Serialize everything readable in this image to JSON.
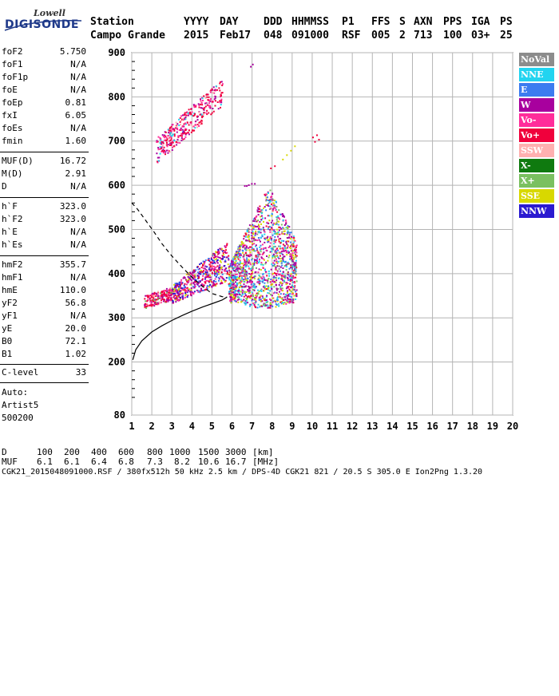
{
  "logo": {
    "line1": "Lowell",
    "line2": "DIGISONDE"
  },
  "header": {
    "labels": [
      "Station",
      "YYYY",
      "DAY",
      "DDD",
      "HHMMSS",
      "P1",
      "FFS",
      "S",
      "AXN",
      "PPS",
      "IGA",
      "PS"
    ],
    "values": [
      "Campo Grande",
      "2015",
      "Feb17",
      "048",
      "091000",
      "RSF",
      "005",
      "2",
      "713",
      "100",
      "03+",
      "25"
    ]
  },
  "params_group1": [
    {
      "name": "foF2",
      "value": "5.750"
    },
    {
      "name": "foF1",
      "value": "N/A"
    },
    {
      "name": "foF1p",
      "value": "N/A"
    },
    {
      "name": "foE",
      "value": "N/A"
    },
    {
      "name": "foEp",
      "value": "0.81"
    },
    {
      "name": "fxI",
      "value": "6.05"
    },
    {
      "name": "foEs",
      "value": "N/A"
    },
    {
      "name": "fmin",
      "value": "1.60"
    }
  ],
  "params_group2": [
    {
      "name": "MUF(D)",
      "value": "16.72"
    },
    {
      "name": "M(D)",
      "value": "2.91"
    },
    {
      "name": "D",
      "value": "N/A"
    }
  ],
  "params_group3": [
    {
      "name": "h`F",
      "value": "323.0"
    },
    {
      "name": "h`F2",
      "value": "323.0"
    },
    {
      "name": "h`E",
      "value": "N/A"
    },
    {
      "name": "h`Es",
      "value": "N/A"
    }
  ],
  "params_group4": [
    {
      "name": "hmF2",
      "value": "355.7"
    },
    {
      "name": "hmF1",
      "value": "N/A"
    },
    {
      "name": "hmE",
      "value": "110.0"
    },
    {
      "name": "yF2",
      "value": "56.8"
    },
    {
      "name": "yF1",
      "value": "N/A"
    },
    {
      "name": "yE",
      "value": "20.0"
    },
    {
      "name": "B0",
      "value": "72.1"
    },
    {
      "name": "B1",
      "value": "1.02"
    }
  ],
  "params_group5": [
    {
      "name": "C-level",
      "value": "33"
    }
  ],
  "autoscaling": {
    "line1": "Auto:",
    "line2": "Artist5",
    "line3": "500200"
  },
  "legend": [
    {
      "label": "NoVal",
      "color": "#8c8c8c"
    },
    {
      "label": "NNE",
      "color": "#22d4f0"
    },
    {
      "label": "E",
      "color": "#3b7cf0"
    },
    {
      "label": "W",
      "color": "#a8009e"
    },
    {
      "label": "Vo-",
      "color": "#ff2d9a"
    },
    {
      "label": "Vo+",
      "color": "#f0003c"
    },
    {
      "label": "SSW",
      "color": "#ffb0b0"
    },
    {
      "label": "X-",
      "color": "#0f7a0f"
    },
    {
      "label": "X+",
      "color": "#7ac060"
    },
    {
      "label": "SSE",
      "color": "#d8d800"
    },
    {
      "label": "NNW",
      "color": "#2a1ad0"
    }
  ],
  "chart_data": {
    "type": "scatter",
    "title": "",
    "xlabel": "",
    "ylabel": "",
    "xlim": [
      1,
      20
    ],
    "ylim": [
      80,
      900
    ],
    "x_ticks": [
      1,
      2,
      3,
      4,
      5,
      6,
      7,
      8,
      9,
      10,
      11,
      12,
      13,
      14,
      15,
      16,
      17,
      18,
      19,
      20
    ],
    "y_ticks": [
      80,
      200,
      300,
      400,
      500,
      600,
      700,
      800,
      900
    ],
    "grid": true,
    "curves": [
      {
        "name": "",
        "style": "solid",
        "x": [
          1.05,
          1.2,
          1.5,
          2.0,
          2.5,
          3.0,
          3.5,
          4.0,
          4.5,
          5.0,
          5.5,
          5.75
        ],
        "y": [
          205,
          228,
          248,
          268,
          282,
          294,
          305,
          315,
          324,
          332,
          340,
          347
        ]
      },
      {
        "name": "",
        "style": "dashed",
        "x": [
          1.0,
          1.3,
          1.7,
          2.1,
          2.5,
          3.0,
          3.5,
          4.0,
          4.5,
          5.0,
          5.5,
          5.75
        ],
        "y": [
          560,
          545,
          520,
          495,
          468,
          440,
          415,
          392,
          372,
          355,
          348,
          347
        ]
      }
    ],
    "echo_clusters": [
      {
        "name": "F-trace lower",
        "x": [
          1.6,
          3.0
        ],
        "y": [
          325,
          375
        ]
      },
      {
        "name": "F-trace rising",
        "x": [
          3.0,
          5.8
        ],
        "y": [
          340,
          480
        ]
      },
      {
        "name": "spread-F",
        "x": [
          5.8,
          9.2
        ],
        "y": [
          320,
          600
        ]
      },
      {
        "name": "multihop",
        "x": [
          2.2,
          5.5
        ],
        "y": [
          655,
          850
        ]
      }
    ]
  },
  "footer": {
    "d_label": "D",
    "d_values": [
      "100",
      "200",
      "400",
      "600",
      "800",
      "1000",
      "1500",
      "3000",
      "[km]"
    ],
    "muf_label": "MUF",
    "muf_values": [
      "6.1",
      "6.1",
      "6.4",
      "6.8",
      "7.3",
      "8.2",
      "10.6",
      "16.7",
      "[MHz]"
    ],
    "file_line": "CGK21_2015048091000.RSF / 380fx512h 50 kHz 2.5 km / DPS-4D CGK21 821 / 20.5 S 305.0 E Ion2Png 1.3.20"
  }
}
